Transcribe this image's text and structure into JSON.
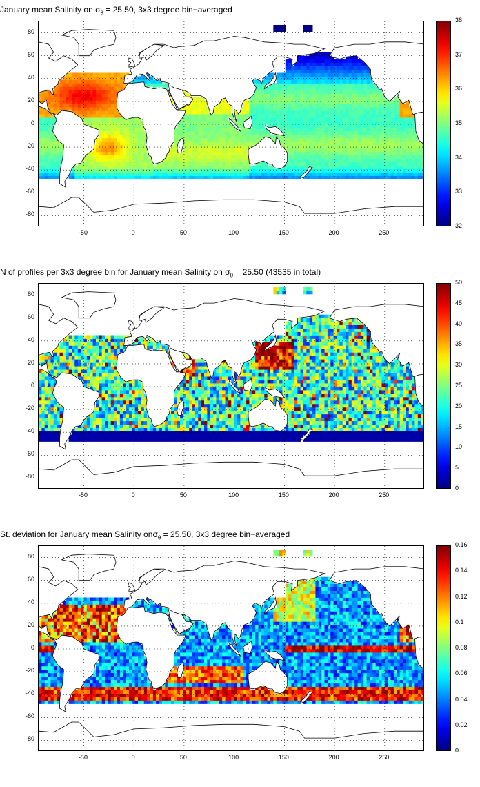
{
  "panels": [
    {
      "title_prefix": "January mean Salinity on σ",
      "title_sub": "θ",
      "title_suffix": " = 25.50, 3x3 degree bin−averaged",
      "variable": "mean_salinity",
      "colorbar": {
        "min": 32,
        "max": 38,
        "ticks": [
          "32",
          "33",
          "34",
          "35",
          "36",
          "37",
          "38"
        ]
      }
    },
    {
      "title_prefix": "N of profiles per 3x3 degree bin for January mean Salinity on σ",
      "title_sub": "θ",
      "title_suffix": " = 25.50 (43535 in total)",
      "variable": "profile_count",
      "colorbar": {
        "min": 0,
        "max": 50,
        "ticks": [
          "0",
          "5",
          "10",
          "15",
          "20",
          "25",
          "30",
          "35",
          "40",
          "45",
          "50"
        ]
      }
    },
    {
      "title_prefix": "St. deviation for January mean Salinity onσ",
      "title_sub": "θ",
      "title_suffix": " = 25.50, 3x3 degree bin−averaged",
      "variable": "salinity_std",
      "colorbar": {
        "min": 0,
        "max": 0.16,
        "ticks": [
          "0",
          "0.02",
          "0.04",
          "0.06",
          "0.08",
          "0.1",
          "0.12",
          "0.14",
          "0.16"
        ]
      }
    }
  ],
  "axes": {
    "xticks": [
      "-50",
      "0",
      "50",
      "100",
      "150",
      "200",
      "250"
    ],
    "yticks": [
      "80",
      "60",
      "40",
      "20",
      "0",
      "-20",
      "-40",
      "-60",
      "-80"
    ],
    "xlim": [
      -95,
      290
    ],
    "ylim": [
      -90,
      90
    ],
    "grid": "dotted"
  },
  "colormap": "jet"
}
